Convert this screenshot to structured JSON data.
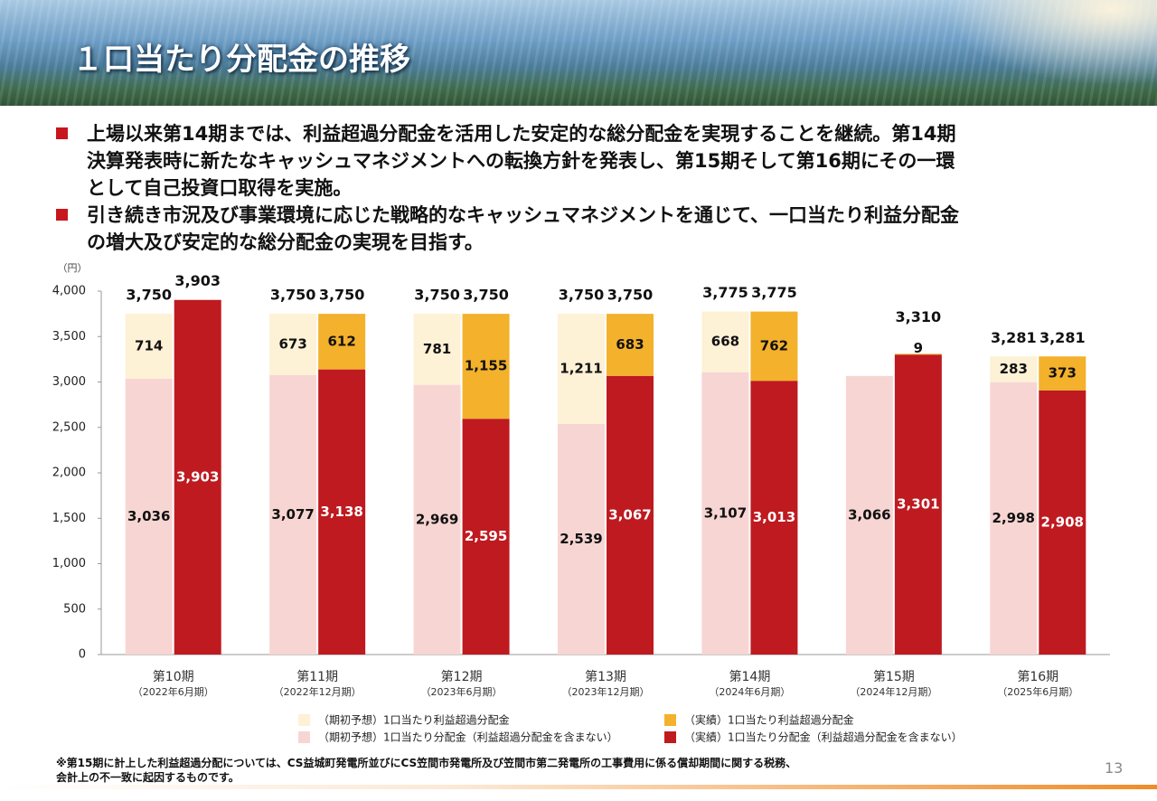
{
  "header": {
    "title": "１口当たり分配金の推移"
  },
  "bullets": [
    [
      "上場以来第14期までは、利益超過分配金を活用した安定的な総分配金を実現することを継続。第14期",
      "決算発表時に新たなキャッシュマネジメントへの転換方針を発表し、第15期そして第16期にその一環",
      "として自己投資口取得を実施。"
    ],
    [
      "引き続き市況及び事業環境に応じた戦略的なキャッシュマネジメントを通じて、一口当たり利益分配金",
      "の増大及び安定的な総分配金の実現を目指す。"
    ]
  ],
  "chart_data": {
    "type": "grouped_stacked_bar",
    "y_label": "（円）",
    "categories": [
      "第10期",
      "第11期",
      "第12期",
      "第13期",
      "第14期",
      "第15期",
      "第16期"
    ],
    "category_sublabels": [
      "（2022年6月期）",
      "（2022年12月期）",
      "（2023年6月期）",
      "（2023年12月期）",
      "（2024年6月期）",
      "（2024年12月期）",
      "（2025年6月期）"
    ],
    "ylim": [
      0,
      4000
    ],
    "yticks": [
      0,
      500,
      {
        "value": 1000,
        "label": "1,000"
      },
      {
        "value": 1500,
        "label": "1,500"
      },
      {
        "value": 2000,
        "label": "2,000"
      },
      {
        "value": 2500,
        "label": "2,500"
      },
      {
        "value": 3000,
        "label": "3,000"
      },
      {
        "value": 3500,
        "label": "3,500"
      },
      {
        "value": 4000,
        "label": "4,000"
      }
    ],
    "groups": [
      {
        "series": [
          {
            "name": "（期初予想）1口当たり分配金（利益超過分配金を含まない）",
            "color": "#f7d5d3",
            "label_color": "#111111",
            "values": [
              3036,
              3077,
              2969,
              2539,
              3107,
              3066,
              2998
            ],
            "value_labels": [
              "3,036",
              "3,077",
              "2,969",
              "2,539",
              "3,107",
              "3,066",
              "2,998"
            ]
          },
          {
            "name": "（期初予想）1口当たり利益超過分配金",
            "color": "#fdf1d6",
            "label_color": "#111111",
            "values": [
              714,
              673,
              781,
              1211,
              668,
              null,
              283
            ],
            "value_labels": [
              "714",
              "673",
              "781",
              "1,211",
              "668",
              null,
              "283"
            ]
          }
        ],
        "totals": {
          "values": [
            3750,
            3750,
            3750,
            3750,
            3775,
            null,
            3281
          ],
          "value_labels": [
            "3,750",
            "3,750",
            "3,750",
            "3,750",
            "3,775",
            null,
            "3,281"
          ]
        }
      },
      {
        "series": [
          {
            "name": "（実績）1口当たり分配金（利益超過分配金を含まない）",
            "color": "#be1a20",
            "label_color": "#ffffff",
            "values": [
              3903,
              3138,
              2595,
              3067,
              3013,
              3301,
              2908
            ],
            "value_labels": [
              "3,903",
              "3,138",
              "2,595",
              "3,067",
              "3,013",
              "3,301",
              "2,908"
            ]
          },
          {
            "name": "（実績）1口当たり利益超過分配金",
            "color": "#f3b12c",
            "label_color": "#111111",
            "values": [
              null,
              612,
              1155,
              683,
              762,
              9,
              373
            ],
            "value_labels": [
              null,
              "612",
              "1,155",
              "683",
              "762",
              "9",
              "373"
            ]
          }
        ],
        "totals": {
          "values": [
            3903,
            3750,
            3750,
            3750,
            3775,
            3310,
            3281
          ],
          "value_labels": [
            "3,903",
            "3,750",
            "3,750",
            "3,750",
            "3,775",
            "3,310",
            "3,281"
          ]
        }
      }
    ]
  },
  "footnote": [
    "※第15期に計上した利益超過分配については、CS益城町発電所並びにCS笠間市発電所及び笠間市第二発電所の工事費用に係る償却期間に関する税務、",
    "会計上の不一致に起因するものです。"
  ],
  "page_number": "13"
}
